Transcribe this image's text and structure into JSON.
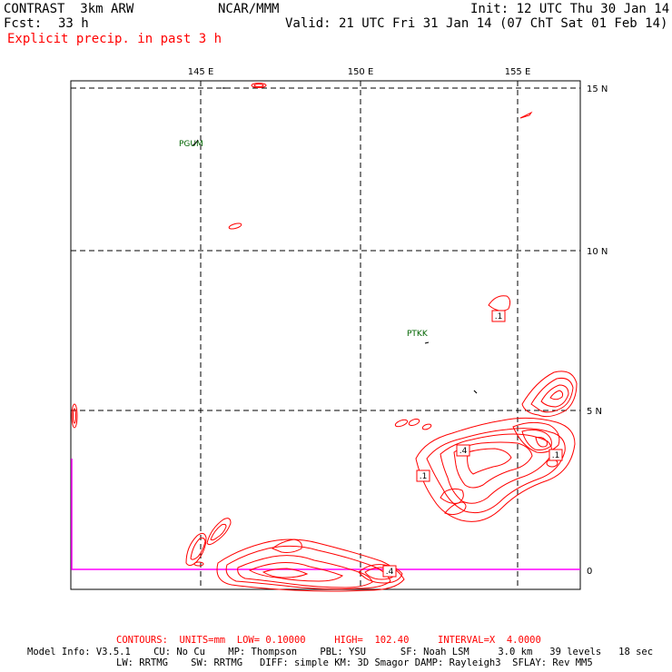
{
  "header": {
    "model": "CONTRAST  3km ARW",
    "center": "NCAR/MMM",
    "init": "Init: 12 UTC Thu 30 Jan 14",
    "fcst_label": "Fcst:",
    "fcst_value": "33 h",
    "valid": "Valid: 21 UTC Fri 31 Jan 14 (07 ChT Sat 01 Feb 14)",
    "field": "Explicit precip. in past 3 h"
  },
  "map": {
    "lon_labels": [
      "145 E",
      "150 E",
      "155 E"
    ],
    "lat_labels": [
      "15 N",
      "10 N",
      "5 N",
      "0"
    ],
    "stations": [
      {
        "id": "PGUM"
      },
      {
        "id": "PTKK"
      }
    ],
    "contour_labels": [
      ".1",
      ".4",
      ".1",
      ".1",
      ".4"
    ],
    "colors": {
      "precip": "#ff0000",
      "boundary": "#ff00ff",
      "station": "#006400"
    }
  },
  "footer": {
    "contours": "CONTOURS:  UNITS=mm  LOW= 0.10000     HIGH=  102.40     INTERVAL=X  4.0000",
    "model_info_1": "Model Info: V3.5.1    CU: No Cu    MP: Thompson    PBL: YSU      SF: Noah LSM     3.0 km   39 levels   18 sec",
    "model_info_2": "LW: RRTMG    SW: RRTMG   DIFF: simple KM: 3D Smagor DAMP: Rayleigh3  SFLAY: Rev MM5"
  }
}
